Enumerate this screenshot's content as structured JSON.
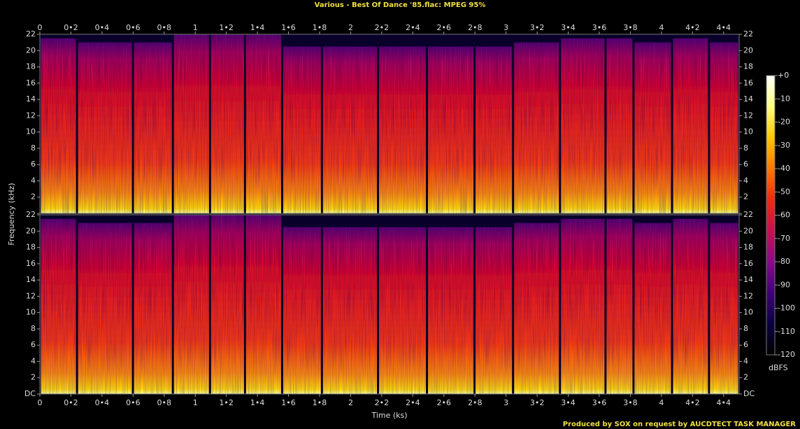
{
  "chart_data": {
    "type": "spectrogram",
    "title": "Various - Best Of Dance '85.flac: MPEG 95%",
    "x_label": "Time (ks)",
    "y_label": "Frequency (kHz)",
    "footer": "Produced by SOX on request by AUCDTECT TASK MANAGER",
    "xlim": [
      0,
      4.5
    ],
    "xticks": [
      0,
      {
        "value": 0.2,
        "label": "0•2"
      },
      {
        "value": 0.4,
        "label": "0•4"
      },
      {
        "value": 0.6,
        "label": "0•6"
      },
      {
        "value": 0.8,
        "label": "0•8"
      },
      1,
      {
        "value": 1.2,
        "label": "1•2"
      },
      {
        "value": 1.4,
        "label": "1•4"
      },
      {
        "value": 1.6,
        "label": "1•6"
      },
      {
        "value": 1.8,
        "label": "1•8"
      },
      2,
      {
        "value": 2.2,
        "label": "2•2"
      },
      {
        "value": 2.4,
        "label": "2•4"
      },
      {
        "value": 2.6,
        "label": "2•6"
      },
      {
        "value": 2.8,
        "label": "2•8"
      },
      3,
      {
        "value": 3.2,
        "label": "3•2"
      },
      {
        "value": 3.4,
        "label": "3•4"
      },
      {
        "value": 3.6,
        "label": "3•6"
      },
      {
        "value": 3.8,
        "label": "3•8"
      },
      4,
      {
        "value": 4.2,
        "label": "4•2"
      },
      {
        "value": 4.4,
        "label": "4•4"
      }
    ],
    "ylim": [
      0,
      22
    ],
    "yticks": [
      {
        "value": 0,
        "label": "DC"
      },
      2,
      4,
      6,
      8,
      10,
      12,
      14,
      16,
      18,
      20,
      22
    ],
    "track_bounds": [
      0,
      0.239,
      0.599,
      0.856,
      1.095,
      1.32,
      1.559,
      1.815,
      2.176,
      2.491,
      2.797,
      3.045,
      3.347,
      3.64,
      3.82,
      4.068,
      4.306,
      4.5
    ],
    "channels": [
      {
        "cutoff": [
          21.5,
          21,
          21,
          22,
          22,
          22,
          20.5,
          20.5,
          20.5,
          20.5,
          20.5,
          21,
          21.5,
          21.5,
          21,
          21.5,
          21
        ]
      },
      {
        "cutoff": [
          21.5,
          21,
          21,
          22,
          22,
          22,
          20.5,
          20.5,
          20.5,
          20.5,
          20.5,
          21,
          21.5,
          21.5,
          21,
          21.5,
          21
        ]
      }
    ],
    "colorbar": {
      "label": "dBFS",
      "lim": [
        -120,
        0
      ],
      "ticks": [
        {
          "value": 0,
          "label": "+0"
        },
        -10,
        -20,
        -30,
        -40,
        -50,
        -60,
        -70,
        -80,
        -90,
        -100,
        -110,
        -120
      ],
      "colors": [
        "#000000",
        "#0a0040",
        "#40007a",
        "#8a0a8a",
        "#c81050",
        "#f02a10",
        "#ff7800",
        "#ffc800",
        "#ffff80",
        "#ffffff"
      ]
    }
  }
}
